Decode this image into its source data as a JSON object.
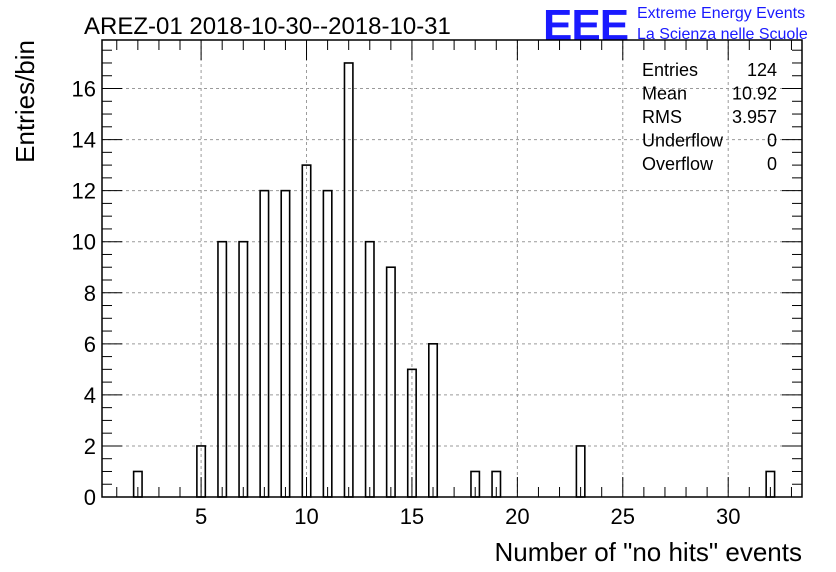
{
  "chart_data": {
    "type": "bar",
    "title": "AREZ-01 2018-10-30--2018-10-31",
    "xlabel": "Number of \"no hits\" events",
    "ylabel": "Entries/bin",
    "xlim": [
      0.3,
      33.5
    ],
    "ylim": [
      0,
      17.9
    ],
    "x_ticks": [
      "5",
      "10",
      "15",
      "20",
      "25",
      "30"
    ],
    "y_ticks": [
      "0",
      "2",
      "4",
      "6",
      "8",
      "10",
      "12",
      "14",
      "16"
    ],
    "grid": true,
    "bins": [
      {
        "x": 2,
        "value": 1
      },
      {
        "x": 5,
        "value": 2
      },
      {
        "x": 6,
        "value": 10
      },
      {
        "x": 7,
        "value": 10
      },
      {
        "x": 8,
        "value": 12
      },
      {
        "x": 9,
        "value": 12
      },
      {
        "x": 10,
        "value": 13
      },
      {
        "x": 11,
        "value": 12
      },
      {
        "x": 12,
        "value": 17
      },
      {
        "x": 13,
        "value": 10
      },
      {
        "x": 14,
        "value": 9
      },
      {
        "x": 15,
        "value": 5
      },
      {
        "x": 16,
        "value": 6
      },
      {
        "x": 18,
        "value": 1
      },
      {
        "x": 19,
        "value": 1
      },
      {
        "x": 23,
        "value": 2
      },
      {
        "x": 32,
        "value": 1
      }
    ],
    "stats": [
      {
        "label": "Entries",
        "value": "124"
      },
      {
        "label": "Mean",
        "value": "10.92"
      },
      {
        "label": "RMS",
        "value": "3.957"
      },
      {
        "label": "Underflow",
        "value": "0"
      },
      {
        "label": "Overflow",
        "value": "0"
      }
    ]
  },
  "logo": {
    "mark": "EEE",
    "line1": "Extreme Energy Events",
    "line2": "La Scienza nelle Scuole",
    "color": "#1a1aff"
  }
}
